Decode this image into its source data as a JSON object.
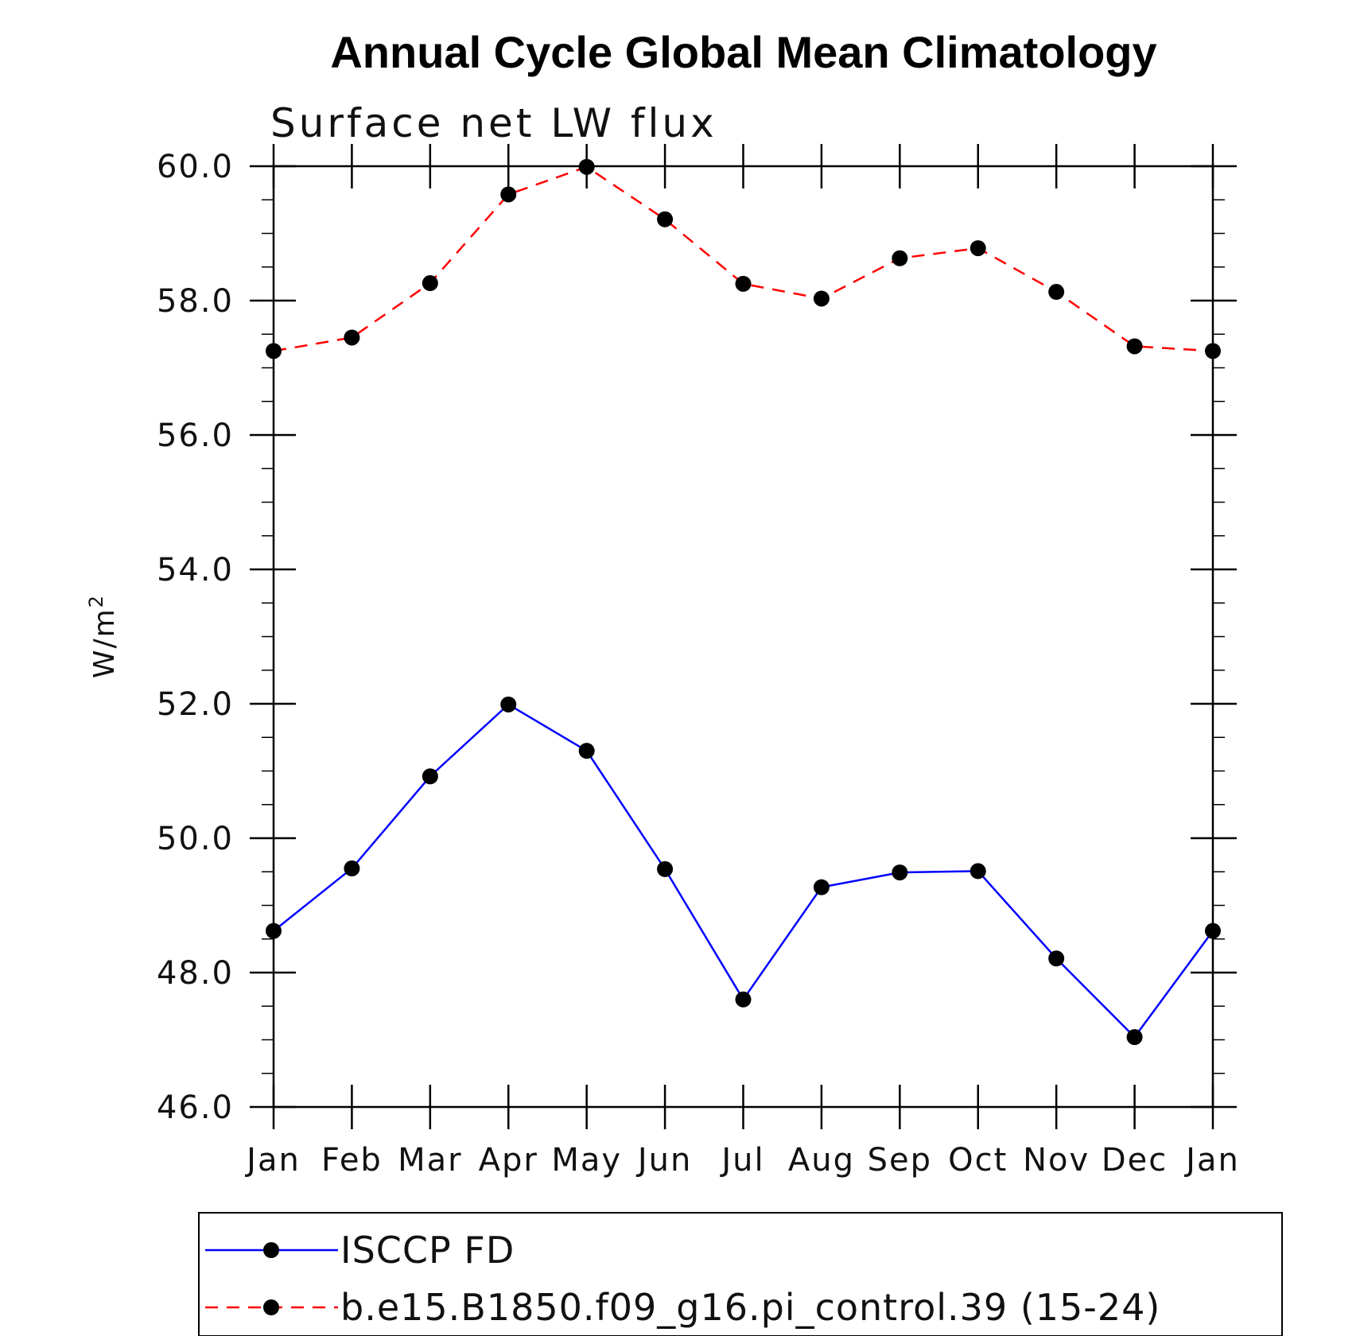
{
  "chart_data": {
    "type": "line",
    "title": "Annual Cycle Global Mean Climatology",
    "subtitle": "Surface net LW flux",
    "ylabel": "W/m",
    "ylabel_sup": "2",
    "xlabel": "",
    "categories": [
      "Jan",
      "Feb",
      "Mar",
      "Apr",
      "May",
      "Jun",
      "Jul",
      "Aug",
      "Sep",
      "Oct",
      "Nov",
      "Dec",
      "Jan"
    ],
    "ylim": [
      46.0,
      60.0
    ],
    "yticks": [
      "46.0",
      "48.0",
      "50.0",
      "52.0",
      "54.0",
      "56.0",
      "58.0",
      "60.0"
    ],
    "grid": false,
    "legend_position": "bottom",
    "series": [
      {
        "name": "ISCCP FD",
        "color": "#0000ff",
        "dash": "solid",
        "marker": "filled-circle",
        "values": [
          48.62,
          49.55,
          50.92,
          51.99,
          51.3,
          49.54,
          47.6,
          49.27,
          49.49,
          49.51,
          48.21,
          47.04,
          48.62
        ]
      },
      {
        "name": "b.e15.B1850.f09_g16.pi_control.39 (15-24)",
        "color": "#ff0000",
        "dash": "dashed",
        "marker": "filled-circle",
        "values": [
          57.25,
          57.45,
          58.26,
          59.58,
          59.99,
          59.21,
          58.25,
          58.03,
          58.63,
          58.78,
          58.13,
          57.32,
          57.25
        ]
      }
    ]
  }
}
